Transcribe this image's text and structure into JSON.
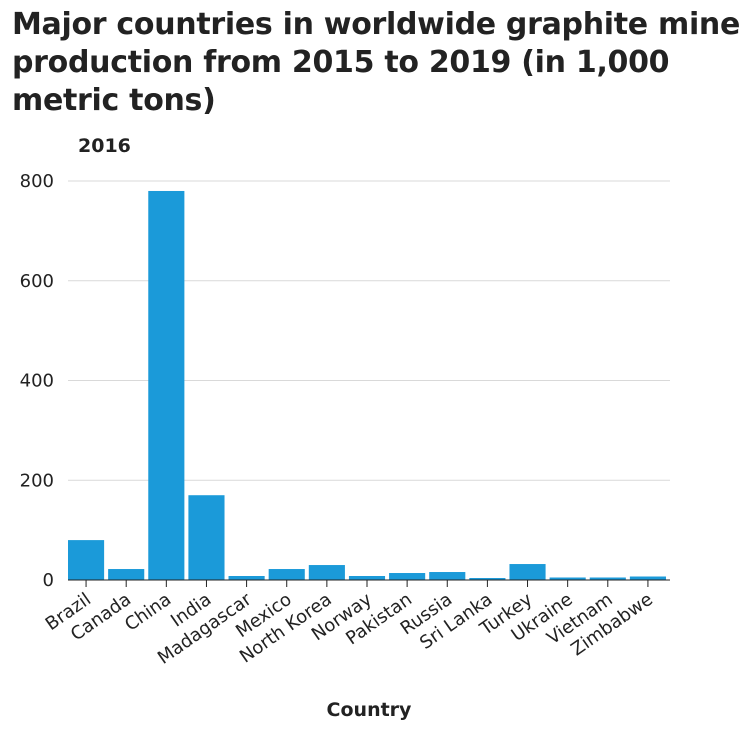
{
  "chart_data": {
    "type": "bar",
    "title": "Major countries in worldwide graphite mine production from 2015 to 2019 (in 1,000 metric tons)",
    "subtitle": "2016",
    "xlabel": "Country",
    "ylabel": "",
    "ylim": [
      0,
      800
    ],
    "yticks": [
      0,
      200,
      400,
      600,
      800
    ],
    "grid": true,
    "bar_color": "#1b9ad9",
    "categories": [
      "Brazil",
      "Canada",
      "China",
      "India",
      "Madagascar",
      "Mexico",
      "North Korea",
      "Norway",
      "Pakistan",
      "Russia",
      "Sri Lanka",
      "Turkey",
      "Ukraine",
      "Vietnam",
      "Zimbabwe"
    ],
    "values": [
      80,
      22,
      780,
      170,
      8,
      22,
      30,
      8,
      14,
      16,
      4,
      32,
      5,
      5,
      7
    ]
  }
}
